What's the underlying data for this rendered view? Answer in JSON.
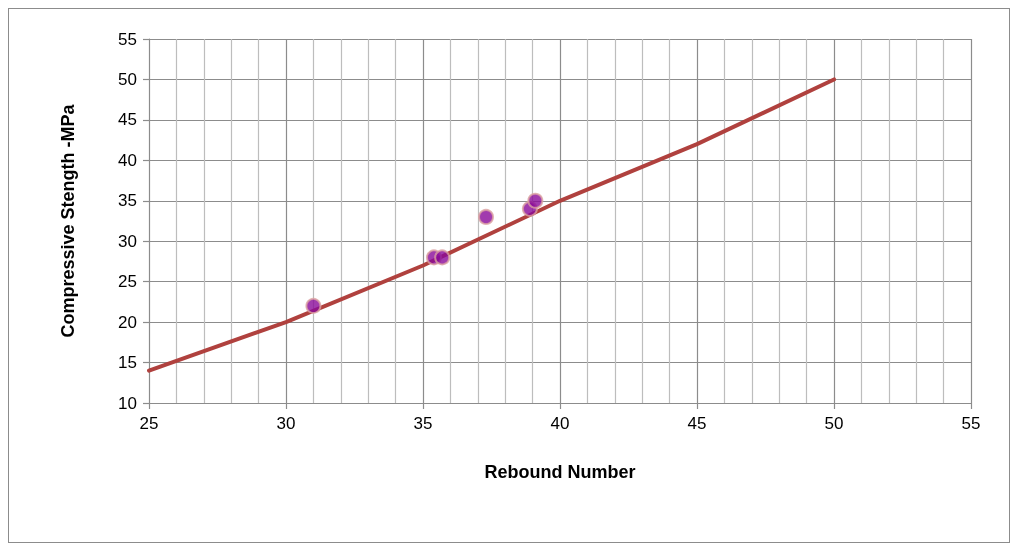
{
  "chart_data": {
    "type": "scatter",
    "xlabel": "Rebound Number",
    "ylabel": "Compressive Stength -MPa",
    "xlim": [
      25,
      55
    ],
    "xticks": [
      25,
      30,
      35,
      40,
      45,
      50,
      55
    ],
    "ylim": [
      10,
      55
    ],
    "yticks": [
      10,
      15,
      20,
      25,
      30,
      35,
      40,
      45,
      50,
      55
    ],
    "grid": true,
    "marker": "circle",
    "series": [
      {
        "color": "#8a0a9a",
        "x": [
          31,
          35.4,
          35.7,
          37.3,
          38.9,
          39.1
        ],
        "values": [
          22,
          28,
          28,
          33,
          34,
          35
        ]
      },
      {
        "type": "line",
        "color": "#b0413e",
        "line_style": "solid",
        "marker": "none",
        "x": [
          25,
          30,
          35,
          40,
          45,
          50
        ],
        "values": [
          14,
          20,
          27,
          35,
          42,
          50
        ]
      }
    ]
  }
}
